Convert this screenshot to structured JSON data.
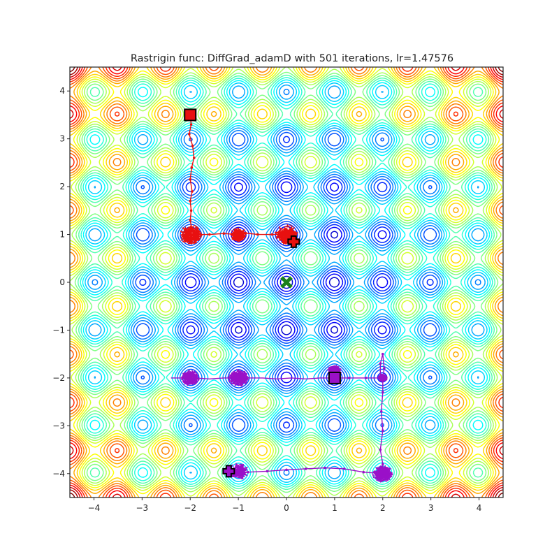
{
  "chart_data": {
    "type": "contour",
    "title": "Rastrigin func: DiffGrad_adamD with 501 iterations, lr=1.47576",
    "xlabel": "",
    "ylabel": "",
    "xlim": [
      -4.5,
      4.5
    ],
    "ylim": [
      -4.5,
      4.5
    ],
    "x_ticks": [
      -4,
      -3,
      -2,
      -1,
      0,
      1,
      2,
      3,
      4
    ],
    "y_ticks": [
      -4,
      -3,
      -2,
      -1,
      0,
      1,
      2,
      3,
      4
    ],
    "x_tick_labels": [
      "−4",
      "−3",
      "−2",
      "−1",
      "0",
      "1",
      "2",
      "3",
      "4"
    ],
    "y_tick_labels": [
      "−4",
      "−3",
      "−2",
      "−1",
      "0",
      "1",
      "2",
      "3",
      "4"
    ],
    "function": "rastrigin",
    "colormap": "jet",
    "global_minimum": {
      "x": 0,
      "y": 0,
      "color": "#1a7f1a",
      "marker": "x"
    },
    "series": [
      {
        "color": "#e81010",
        "start": {
          "x": -2.0,
          "y": 3.5
        },
        "end": {
          "x": 0.15,
          "y": 0.85
        },
        "path": [
          [
            -2.0,
            3.5
          ],
          [
            -1.98,
            3.3
          ],
          [
            -2.02,
            3.1
          ],
          [
            -1.95,
            2.85
          ],
          [
            -1.92,
            2.6
          ],
          [
            -1.97,
            2.4
          ],
          [
            -2.0,
            2.15
          ],
          [
            -1.96,
            1.9
          ],
          [
            -2.0,
            1.7
          ],
          [
            -1.98,
            1.5
          ],
          [
            -2.0,
            1.3
          ],
          [
            -1.97,
            1.12
          ],
          [
            -2.0,
            1.0
          ],
          [
            -1.85,
            1.0
          ],
          [
            -1.6,
            1.0
          ],
          [
            -1.3,
            1.02
          ],
          [
            -1.05,
            1.0
          ],
          [
            -0.85,
            1.03
          ],
          [
            -0.6,
            1.0
          ],
          [
            -0.3,
            1.0
          ],
          [
            0.0,
            1.0
          ],
          [
            0.1,
            0.95
          ],
          [
            0.15,
            0.85
          ]
        ],
        "clusters": [
          {
            "x": -2.0,
            "y": 1.0,
            "r": 0.25
          },
          {
            "x": -1.0,
            "y": 1.0,
            "r": 0.18
          },
          {
            "x": 0.0,
            "y": 1.0,
            "r": 0.25
          }
        ]
      },
      {
        "color": "#9a10c8",
        "start": {
          "x": 1.0,
          "y": -2.0
        },
        "end": {
          "x": -1.2,
          "y": -3.95
        },
        "path": [
          [
            1.0,
            -2.0
          ],
          [
            1.3,
            -2.0
          ],
          [
            1.65,
            -2.0
          ],
          [
            1.95,
            -2.0
          ],
          [
            1.95,
            -1.7
          ],
          [
            2.0,
            -1.5
          ],
          [
            2.03,
            -1.8
          ],
          [
            2.0,
            -2.0
          ],
          [
            2.0,
            -2.3
          ],
          [
            1.97,
            -2.7
          ],
          [
            2.0,
            -3.1
          ],
          [
            1.95,
            -3.5
          ],
          [
            2.0,
            -3.8
          ],
          [
            2.0,
            -4.0
          ],
          [
            1.6,
            -3.97
          ],
          [
            1.2,
            -3.9
          ],
          [
            0.8,
            -3.88
          ],
          [
            0.4,
            -3.9
          ],
          [
            0.0,
            -3.92
          ],
          [
            -0.4,
            -3.95
          ],
          [
            -0.8,
            -3.97
          ],
          [
            -1.0,
            -4.0
          ],
          [
            -1.2,
            -3.95
          ]
        ],
        "path_upper": [
          [
            1.0,
            -2.0
          ],
          [
            0.7,
            -2.0
          ],
          [
            0.4,
            -2.02
          ],
          [
            0.1,
            -2.0
          ],
          [
            -0.2,
            -2.02
          ],
          [
            -0.5,
            -2.0
          ],
          [
            -0.8,
            -2.0
          ],
          [
            -1.0,
            -2.0
          ],
          [
            -1.3,
            -2.0
          ],
          [
            -1.6,
            -2.02
          ],
          [
            -1.9,
            -2.0
          ],
          [
            -2.2,
            -2.0
          ],
          [
            -2.4,
            -2.0
          ]
        ],
        "clusters": [
          {
            "x": 1.0,
            "y": -1.85,
            "r": 0.15
          },
          {
            "x": -1.0,
            "y": -2.0,
            "r": 0.22
          },
          {
            "x": -2.0,
            "y": -2.0,
            "r": 0.2
          },
          {
            "x": 2.0,
            "y": -4.0,
            "r": 0.22
          },
          {
            "x": -1.0,
            "y": -3.95,
            "r": 0.22
          },
          {
            "x": 2.0,
            "y": -2.0,
            "r": 0.1
          }
        ]
      }
    ],
    "grid": false,
    "legend": "none"
  }
}
